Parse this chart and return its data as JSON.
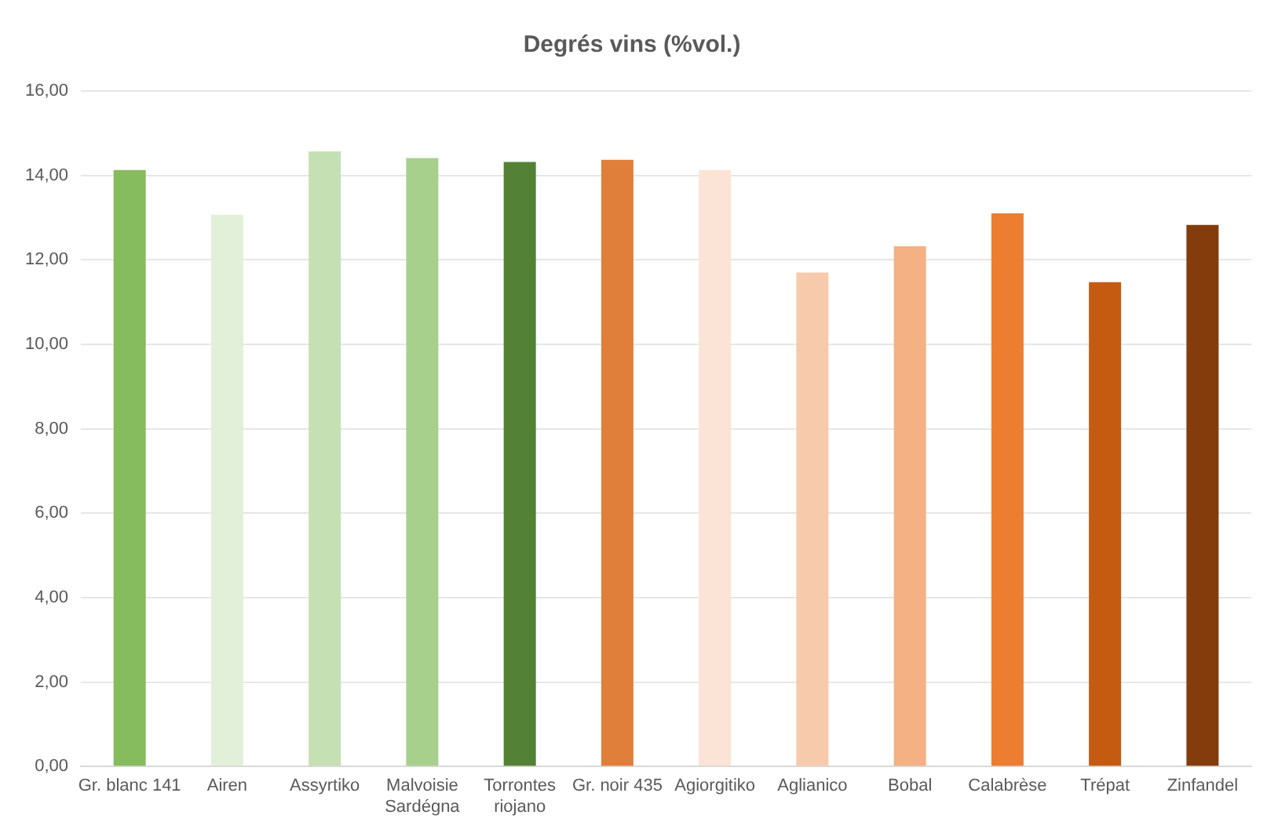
{
  "chart_data": {
    "type": "bar",
    "title": "Degrés vins (%vol.)",
    "categories": [
      "Gr. blanc 141",
      "Airen",
      "Assyrtiko",
      "Malvoisie Sardégna",
      "Torrontes riojano",
      "Gr. noir 435",
      "Agiorgitiko",
      "Aglianico",
      "Bobal",
      "Calabrèse",
      "Trépat",
      "Zinfandel"
    ],
    "values": [
      14.13,
      13.07,
      14.57,
      14.41,
      14.32,
      14.37,
      14.13,
      11.7,
      12.32,
      13.1,
      11.47,
      12.83
    ],
    "colors": [
      "#86bb5e",
      "#e2efd9",
      "#c5e0b3",
      "#a8d08d",
      "#538135",
      "#e07f3a",
      "#fbe4d5",
      "#f7caac",
      "#f4b183",
      "#ed7d31",
      "#c55a11",
      "#843c0c"
    ],
    "ylim": [
      0,
      16
    ],
    "yticks": [
      {
        "value": 0,
        "label": "0,00"
      },
      {
        "value": 2,
        "label": "2,00"
      },
      {
        "value": 4,
        "label": "4,00"
      },
      {
        "value": 6,
        "label": "6,00"
      },
      {
        "value": 8,
        "label": "8,00"
      },
      {
        "value": 10,
        "label": "10,00"
      },
      {
        "value": 12,
        "label": "12,00"
      },
      {
        "value": 14,
        "label": "14,00"
      },
      {
        "value": 16,
        "label": "16,00"
      }
    ],
    "grid": "y",
    "legend": false
  }
}
